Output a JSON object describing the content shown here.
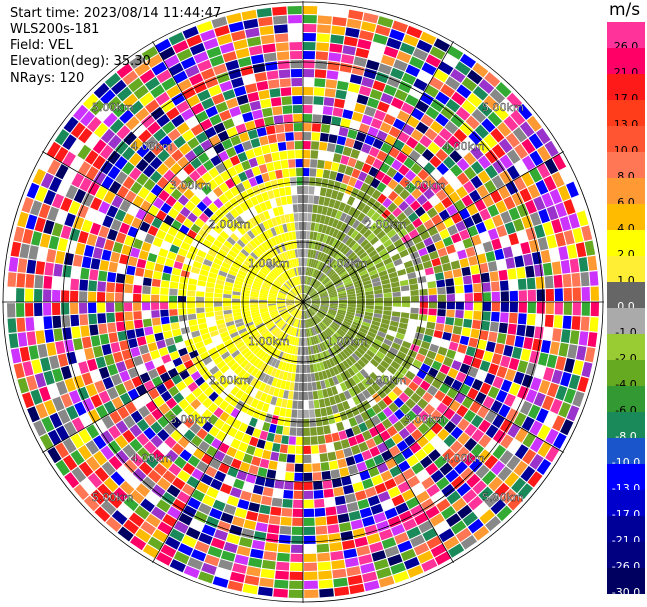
{
  "header": {
    "start_time": "Start time: 2023/08/14 11:44:47",
    "instrument": "WLS200s-181",
    "field": "Field: VEL",
    "elevation": "Elevation(deg): 35.30",
    "nrays": "NRays: 120"
  },
  "colorbar": {
    "unit": "m/s",
    "levels": [
      "26.0",
      "21.0",
      "17.0",
      "13.0",
      "10.0",
      "8.0",
      "6.0",
      "4.0",
      "2.0",
      "1.0",
      "0.0",
      "-1.0",
      "-2.0",
      "-4.0",
      "-6.0",
      "-8.0",
      "-10.0",
      "-13.0",
      "-17.0",
      "-21.0",
      "-26.0",
      "-30.0"
    ],
    "colors": [
      "#ff3399",
      "#ff0066",
      "#ff1a1a",
      "#ff3d1a",
      "#ff5533",
      "#ff7755",
      "#ff9933",
      "#ffbb00",
      "#ffff00",
      "#ffee33",
      "#666666",
      "#aaaaaa",
      "#99cc33",
      "#66aa22",
      "#339933",
      "#1a8a5a",
      "#1a55cc",
      "#0000ff",
      "#0000cc",
      "#000099",
      "#000080",
      "#000060"
    ]
  },
  "chart_data": {
    "type": "heatmap",
    "projection": "polar PPI",
    "nrays": 120,
    "range_rings": [
      "1.00km",
      "2.00km",
      "3.00km",
      "4.00km",
      "5.00km"
    ],
    "field": "VEL",
    "elevation_deg": 35.3,
    "structure": "inner region: westerly sectors yellow (~2-4 m/s), easterly sectors olive green (~-2 to -4 m/s), grey near zero along north-south; outer rings noisy across full scale",
    "inner_clean_range_km": 3.2
  }
}
